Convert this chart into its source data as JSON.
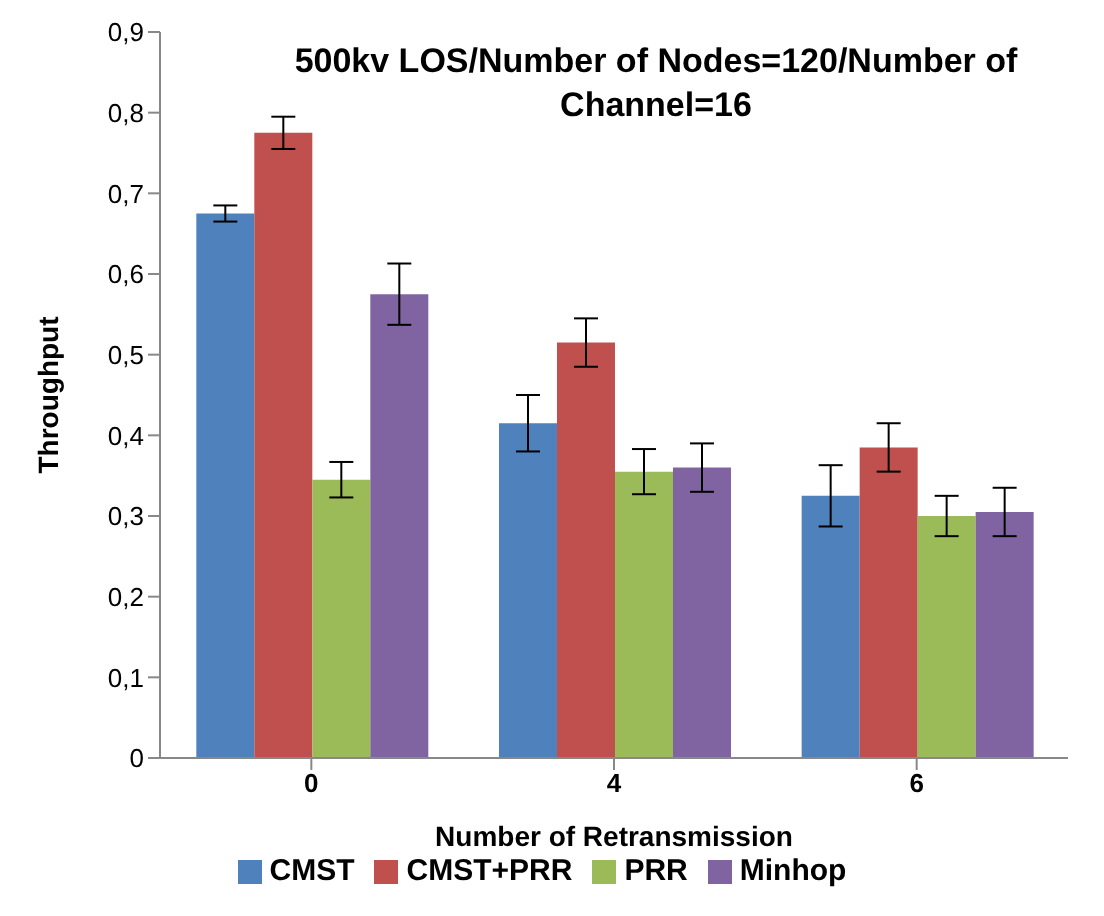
{
  "chart_data": {
    "type": "bar",
    "title": "500kv LOS/Number of Nodes=120/Number of Channel=16",
    "xlabel": "Number of Retransmission",
    "ylabel": "Throughput",
    "categories": [
      "0",
      "4",
      "6"
    ],
    "series": [
      {
        "name": "CMST",
        "color": "#4f81bd",
        "values": [
          0.675,
          0.415,
          0.325
        ],
        "errors": [
          0.01,
          0.035,
          0.038
        ]
      },
      {
        "name": "CMST+PRR",
        "color": "#c0504d",
        "values": [
          0.775,
          0.515,
          0.385
        ],
        "errors": [
          0.02,
          0.03,
          0.03
        ]
      },
      {
        "name": "PRR",
        "color": "#9bbb59",
        "values": [
          0.345,
          0.355,
          0.3
        ],
        "errors": [
          0.022,
          0.028,
          0.025
        ]
      },
      {
        "name": "Minhop",
        "color": "#8064a2",
        "values": [
          0.575,
          0.36,
          0.305
        ],
        "errors": [
          0.038,
          0.03,
          0.03
        ]
      }
    ],
    "ylim": [
      0,
      0.9
    ],
    "yticks": [
      {
        "value": 0,
        "label": "0"
      },
      {
        "value": 0.1,
        "label": "0,1"
      },
      {
        "value": 0.2,
        "label": "0,2"
      },
      {
        "value": 0.3,
        "label": "0,3"
      },
      {
        "value": 0.4,
        "label": "0,4"
      },
      {
        "value": 0.5,
        "label": "0,5"
      },
      {
        "value": 0.6,
        "label": "0,6"
      },
      {
        "value": 0.7,
        "label": "0,7"
      },
      {
        "value": 0.8,
        "label": "0,8"
      },
      {
        "value": 0.9,
        "label": "0,9"
      }
    ],
    "grid": false,
    "legend": "bottom"
  }
}
